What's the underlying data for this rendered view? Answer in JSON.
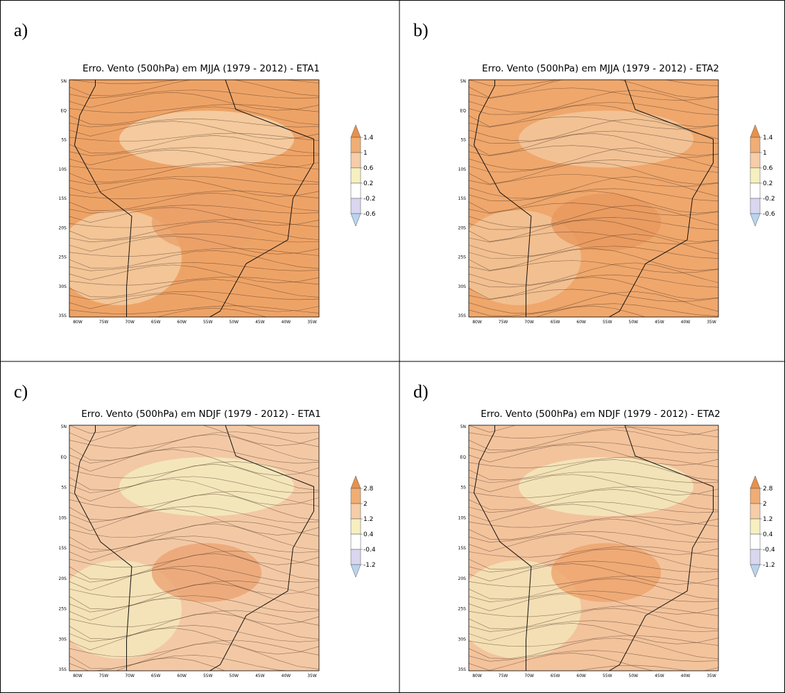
{
  "panels": [
    {
      "label": "a)",
      "title": "Erro. Vento (500hPa) em MJJA (1979 - 2012) - ETA1",
      "lat_labels": [
        "5N",
        "EQ",
        "5S",
        "10S",
        "15S",
        "20S",
        "25S",
        "30S",
        "35S"
      ],
      "lon_labels": [
        "80W",
        "75W",
        "70W",
        "65W",
        "60W",
        "55W",
        "50W",
        "45W",
        "40W",
        "35W"
      ],
      "colorbar_labels": [
        1.4,
        1,
        0.6,
        0.2,
        -0.2,
        -0.6
      ]
    },
    {
      "label": "b)",
      "title": "Erro. Vento (500hPa) em MJJA (1979 - 2012) - ETA2",
      "lat_labels": [
        "5N",
        "EQ",
        "5S",
        "10S",
        "15S",
        "20S",
        "25S",
        "30S",
        "35S"
      ],
      "lon_labels": [
        "80W",
        "75W",
        "70W",
        "65W",
        "60W",
        "55W",
        "50W",
        "45W",
        "40W",
        "35W"
      ],
      "colorbar_labels": [
        1.4,
        1,
        0.6,
        0.2,
        -0.2,
        -0.6
      ]
    },
    {
      "label": "c)",
      "title": "Erro. Vento (500hPa) em NDJF (1979 - 2012) - ETA1",
      "lat_labels": [
        "5N",
        "EQ",
        "5S",
        "10S",
        "15S",
        "20S",
        "25S",
        "30S",
        "35S"
      ],
      "lon_labels": [
        "80W",
        "75W",
        "70W",
        "65W",
        "60W",
        "55W",
        "50W",
        "45W",
        "40W",
        "35W"
      ],
      "colorbar_labels": [
        2.8,
        2,
        1.2,
        0.4,
        -0.4,
        -1.2
      ]
    },
    {
      "label": "d)",
      "title": "Erro. Vento (500hPa) em NDJF (1979 - 2012) - ETA2",
      "lat_labels": [
        "5N",
        "EQ",
        "5S",
        "10S",
        "15S",
        "20S",
        "25S",
        "30S",
        "35S"
      ],
      "lon_labels": [
        "80W",
        "75W",
        "70W",
        "65W",
        "60W",
        "55W",
        "50W",
        "45W",
        "40W",
        "35W"
      ],
      "colorbar_labels": [
        2.8,
        2,
        1.2,
        0.4,
        -0.4,
        -1.2
      ]
    }
  ]
}
